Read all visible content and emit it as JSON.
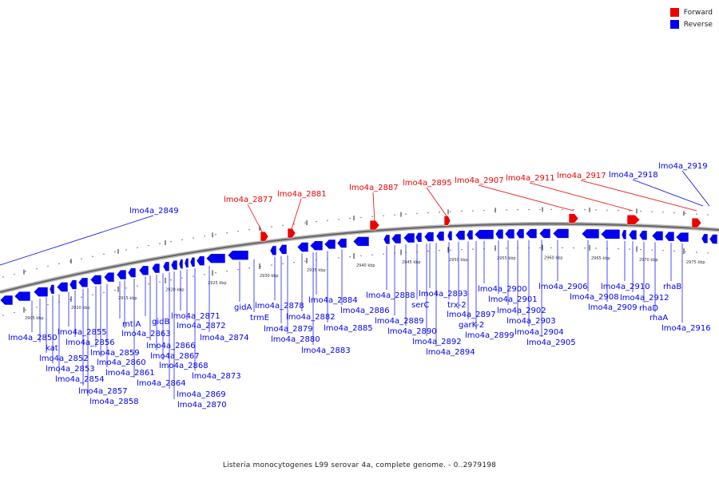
{
  "legend": [
    {
      "label": "Forward",
      "color": "#ee0000"
    },
    {
      "label": "Reverse",
      "color": "#0000ee"
    }
  ],
  "colors": {
    "forward": "#ee0000",
    "reverse": "#0000ee",
    "backbone": "#888888"
  },
  "caption": "Listeria monocytogenes L99 serovar 4a, complete genome. - 0..2979198",
  "ticks": [
    "2905 kbp",
    "2910 kbp",
    "2915 kbp",
    "2920 kbp",
    "2925 kbp",
    "2930 kbp",
    "2935 kbp",
    "2940 kbp",
    "2945 kbp",
    "2950 kbp",
    "2955 kbp",
    "2960 kbp",
    "2965 kbp",
    "2970 kbp",
    "2975 kbp"
  ],
  "forward_genes": [
    "lmo4a_2849",
    "lmo4a_2877",
    "lmo4a_2881",
    "lmo4a_2887",
    "lmo4a_2895",
    "lmo4a_2907",
    "lmo4a_2911",
    "lmo4a_2917",
    "lmo4a_2918",
    "lmo4a_2919"
  ],
  "reverse_genes": [
    "lmo4a_2850",
    "kat",
    "lmo4a_2852",
    "lmo4a_2853",
    "lmo4a_2854",
    "lmo4a_2855",
    "lmo4a_2856",
    "lmo4a_2857",
    "lmo4a_2858",
    "lmo4a_2859",
    "lmo4a_2860",
    "lmo4a_2861",
    "mtlA",
    "lmo4a_2863",
    "lmo4a_2864",
    "gidB",
    "lmo4a_2866",
    "lmo4a_2867",
    "lmo4a_2868",
    "lmo4a_2869",
    "lmo4a_2870",
    "lmo4a_2871",
    "lmo4a_2872",
    "lmo4a_2873",
    "lmo4a_2874",
    "gidA",
    "trmE",
    "lmo4a_2878",
    "lmo4a_2879",
    "lmo4a_2880",
    "lmo4a_2882",
    "lmo4a_2883",
    "lmo4a_2884",
    "lmo4a_2885",
    "lmo4a_2886",
    "lmo4a_2888",
    "lmo4a_2889",
    "lmo4a_2890",
    "serC",
    "lmo4a_2892",
    "lmo4a_2893",
    "lmo4a_2894",
    "trx-2",
    "lmo4a_2897",
    "garK-2",
    "lmo4a_2899",
    "lmo4a_2900",
    "lmo4a_2901",
    "lmo4a_2902",
    "lmo4a_2903",
    "lmo4a_2904",
    "lmo4a_2905",
    "lmo4a_2906",
    "lmo4a_2908",
    "lmo4a_2909",
    "lmo4a_2910",
    "lmo4a_2912",
    "rhaD",
    "rhaA",
    "rhaB",
    "lmo4a_2916"
  ]
}
